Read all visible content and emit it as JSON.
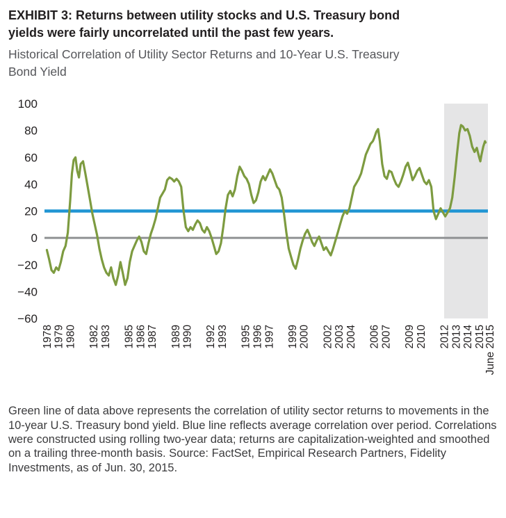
{
  "header": {
    "title": "EXHIBIT 3: Returns between utility stocks and U.S. Treasury bond yields were fairly uncorrelated until the past few years.",
    "subtitle": "Historical Correlation of Utility Sector Returns and 10-Year U.S. Treasury Bond Yield"
  },
  "caption": {
    "text": "Green line of data above represents the correlation of utility sector returns to movements in the 10-year U.S. Treasury bond yield. Blue line reflects average correlation over period. Correlations were constructed using rolling two-year data; returns are capitalization-weighted and smoothed on a trailing three-month basis. Source: FactSet, Empirical Research Partners, Fidelity Investments, as of Jun. 30, 2015."
  },
  "chart_data": {
    "type": "line",
    "title": "Historical Correlation of Utility Sector Returns and 10-Year U.S. Treasury Bond Yield",
    "xlabel": "",
    "ylabel": "",
    "grid": false,
    "legend": "none",
    "ylim": [
      -60,
      100
    ],
    "xlim": [
      1977.8,
      2015.75
    ],
    "yticks": [
      100,
      80,
      60,
      40,
      20,
      0,
      -20,
      -40,
      -60
    ],
    "ytick_labels": [
      "100",
      "80",
      "60",
      "40",
      "20",
      "0",
      "−20",
      "−40",
      "−60"
    ],
    "xticks": [
      {
        "label": "1978",
        "x": 1978
      },
      {
        "label": "1979",
        "x": 1979
      },
      {
        "label": "1980",
        "x": 1980
      },
      {
        "label": "1982",
        "x": 1982
      },
      {
        "label": "1983",
        "x": 1983
      },
      {
        "label": "1985",
        "x": 1985
      },
      {
        "label": "1986",
        "x": 1986
      },
      {
        "label": "1987",
        "x": 1987
      },
      {
        "label": "1989",
        "x": 1989
      },
      {
        "label": "1990",
        "x": 1990
      },
      {
        "label": "1992",
        "x": 1992
      },
      {
        "label": "1993",
        "x": 1993
      },
      {
        "label": "1995",
        "x": 1995
      },
      {
        "label": "1996",
        "x": 1996
      },
      {
        "label": "1997",
        "x": 1997
      },
      {
        "label": "1999",
        "x": 1999
      },
      {
        "label": "2000",
        "x": 2000
      },
      {
        "label": "2002",
        "x": 2002
      },
      {
        "label": "2003",
        "x": 2003
      },
      {
        "label": "2004",
        "x": 2004
      },
      {
        "label": "2006",
        "x": 2006
      },
      {
        "label": "2007",
        "x": 2007
      },
      {
        "label": "2009",
        "x": 2009
      },
      {
        "label": "2010",
        "x": 2010
      },
      {
        "label": "2012",
        "x": 2012
      },
      {
        "label": "2013",
        "x": 2013
      },
      {
        "label": "2014",
        "x": 2014
      },
      {
        "label": "2015",
        "x": 2015
      },
      {
        "label": "June 2015",
        "x": 2015.9
      }
    ],
    "shaded_region": {
      "from": 2012.0,
      "to": 2015.75,
      "color": "#e5e5e6"
    },
    "reference_lines": [
      {
        "name": "zero-line",
        "y": 0,
        "color": "#8f9193"
      },
      {
        "name": "average-correlation-line",
        "y": 20,
        "color": "#2095d3"
      }
    ],
    "series": [
      {
        "name": "Correlation of utility sector returns to 10-year U.S. Treasury bond yield",
        "color": "#7d9b40",
        "points": [
          [
            1978.0,
            -9
          ],
          [
            1978.2,
            -16
          ],
          [
            1978.4,
            -24
          ],
          [
            1978.6,
            -26
          ],
          [
            1978.8,
            -22
          ],
          [
            1979.0,
            -24
          ],
          [
            1979.2,
            -18
          ],
          [
            1979.4,
            -10
          ],
          [
            1979.6,
            -6
          ],
          [
            1979.8,
            4
          ],
          [
            1980.0,
            28
          ],
          [
            1980.15,
            48
          ],
          [
            1980.3,
            58
          ],
          [
            1980.45,
            60
          ],
          [
            1980.6,
            50
          ],
          [
            1980.75,
            45
          ],
          [
            1980.9,
            55
          ],
          [
            1981.1,
            57
          ],
          [
            1981.3,
            48
          ],
          [
            1981.5,
            38
          ],
          [
            1981.7,
            28
          ],
          [
            1981.9,
            18
          ],
          [
            1982.1,
            10
          ],
          [
            1982.3,
            2
          ],
          [
            1982.5,
            -8
          ],
          [
            1982.7,
            -16
          ],
          [
            1982.9,
            -22
          ],
          [
            1983.1,
            -26
          ],
          [
            1983.3,
            -28
          ],
          [
            1983.5,
            -22
          ],
          [
            1983.7,
            -30
          ],
          [
            1983.9,
            -35
          ],
          [
            1984.1,
            -28
          ],
          [
            1984.3,
            -18
          ],
          [
            1984.5,
            -26
          ],
          [
            1984.7,
            -35
          ],
          [
            1984.9,
            -30
          ],
          [
            1985.1,
            -18
          ],
          [
            1985.3,
            -10
          ],
          [
            1985.5,
            -6
          ],
          [
            1985.7,
            -2
          ],
          [
            1985.9,
            1
          ],
          [
            1986.1,
            -3
          ],
          [
            1986.3,
            -10
          ],
          [
            1986.5,
            -12
          ],
          [
            1986.7,
            -4
          ],
          [
            1986.9,
            3
          ],
          [
            1987.1,
            8
          ],
          [
            1987.3,
            14
          ],
          [
            1987.5,
            22
          ],
          [
            1987.7,
            30
          ],
          [
            1987.9,
            33
          ],
          [
            1988.1,
            36
          ],
          [
            1988.3,
            43
          ],
          [
            1988.5,
            45
          ],
          [
            1988.7,
            44
          ],
          [
            1988.9,
            42
          ],
          [
            1989.1,
            44
          ],
          [
            1989.3,
            42
          ],
          [
            1989.5,
            38
          ],
          [
            1989.7,
            20
          ],
          [
            1989.9,
            8
          ],
          [
            1990.1,
            5
          ],
          [
            1990.3,
            8
          ],
          [
            1990.5,
            6
          ],
          [
            1990.7,
            10
          ],
          [
            1990.9,
            13
          ],
          [
            1991.1,
            11
          ],
          [
            1991.3,
            6
          ],
          [
            1991.5,
            4
          ],
          [
            1991.7,
            8
          ],
          [
            1991.9,
            5
          ],
          [
            1992.1,
            0
          ],
          [
            1992.3,
            -6
          ],
          [
            1992.5,
            -12
          ],
          [
            1992.7,
            -10
          ],
          [
            1992.9,
            -4
          ],
          [
            1993.1,
            8
          ],
          [
            1993.3,
            22
          ],
          [
            1993.5,
            32
          ],
          [
            1993.7,
            35
          ],
          [
            1993.9,
            31
          ],
          [
            1994.1,
            36
          ],
          [
            1994.3,
            46
          ],
          [
            1994.5,
            53
          ],
          [
            1994.7,
            50
          ],
          [
            1994.9,
            46
          ],
          [
            1995.1,
            44
          ],
          [
            1995.3,
            40
          ],
          [
            1995.5,
            32
          ],
          [
            1995.7,
            26
          ],
          [
            1995.9,
            28
          ],
          [
            1996.1,
            34
          ],
          [
            1996.3,
            42
          ],
          [
            1996.5,
            46
          ],
          [
            1996.7,
            43
          ],
          [
            1996.9,
            47
          ],
          [
            1997.1,
            51
          ],
          [
            1997.3,
            48
          ],
          [
            1997.5,
            43
          ],
          [
            1997.7,
            38
          ],
          [
            1997.9,
            36
          ],
          [
            1998.1,
            30
          ],
          [
            1998.3,
            18
          ],
          [
            1998.5,
            4
          ],
          [
            1998.7,
            -8
          ],
          [
            1998.9,
            -14
          ],
          [
            1999.1,
            -20
          ],
          [
            1999.3,
            -23
          ],
          [
            1999.5,
            -16
          ],
          [
            1999.7,
            -8
          ],
          [
            1999.9,
            -2
          ],
          [
            2000.1,
            3
          ],
          [
            2000.3,
            6
          ],
          [
            2000.5,
            2
          ],
          [
            2000.7,
            -3
          ],
          [
            2000.9,
            -6
          ],
          [
            2001.1,
            -2
          ],
          [
            2001.3,
            1
          ],
          [
            2001.5,
            -4
          ],
          [
            2001.7,
            -9
          ],
          [
            2001.9,
            -7
          ],
          [
            2002.1,
            -10
          ],
          [
            2002.3,
            -13
          ],
          [
            2002.5,
            -8
          ],
          [
            2002.7,
            -2
          ],
          [
            2002.9,
            4
          ],
          [
            2003.1,
            10
          ],
          [
            2003.3,
            16
          ],
          [
            2003.5,
            20
          ],
          [
            2003.7,
            18
          ],
          [
            2003.9,
            22
          ],
          [
            2004.1,
            30
          ],
          [
            2004.3,
            38
          ],
          [
            2004.5,
            41
          ],
          [
            2004.7,
            44
          ],
          [
            2004.9,
            48
          ],
          [
            2005.1,
            55
          ],
          [
            2005.3,
            62
          ],
          [
            2005.5,
            66
          ],
          [
            2005.7,
            70
          ],
          [
            2005.9,
            72
          ],
          [
            2006.0,
            74
          ],
          [
            2006.2,
            79
          ],
          [
            2006.35,
            81
          ],
          [
            2006.5,
            72
          ],
          [
            2006.7,
            55
          ],
          [
            2006.9,
            46
          ],
          [
            2007.1,
            44
          ],
          [
            2007.3,
            50
          ],
          [
            2007.5,
            49
          ],
          [
            2007.7,
            44
          ],
          [
            2007.9,
            40
          ],
          [
            2008.1,
            38
          ],
          [
            2008.3,
            42
          ],
          [
            2008.5,
            47
          ],
          [
            2008.7,
            53
          ],
          [
            2008.9,
            56
          ],
          [
            2009.1,
            50
          ],
          [
            2009.3,
            43
          ],
          [
            2009.5,
            46
          ],
          [
            2009.7,
            50
          ],
          [
            2009.9,
            52
          ],
          [
            2010.1,
            47
          ],
          [
            2010.3,
            42
          ],
          [
            2010.5,
            40
          ],
          [
            2010.7,
            43
          ],
          [
            2010.9,
            38
          ],
          [
            2011.1,
            20
          ],
          [
            2011.3,
            14
          ],
          [
            2011.5,
            18
          ],
          [
            2011.7,
            22
          ],
          [
            2011.9,
            19
          ],
          [
            2012.1,
            16
          ],
          [
            2012.3,
            19
          ],
          [
            2012.5,
            22
          ],
          [
            2012.7,
            30
          ],
          [
            2012.9,
            45
          ],
          [
            2013.1,
            62
          ],
          [
            2013.3,
            78
          ],
          [
            2013.45,
            84
          ],
          [
            2013.6,
            83
          ],
          [
            2013.8,
            80
          ],
          [
            2014.0,
            81
          ],
          [
            2014.2,
            76
          ],
          [
            2014.4,
            68
          ],
          [
            2014.6,
            64
          ],
          [
            2014.8,
            67
          ],
          [
            2015.0,
            60
          ],
          [
            2015.1,
            57
          ],
          [
            2015.2,
            62
          ],
          [
            2015.35,
            68
          ],
          [
            2015.5,
            72
          ],
          [
            2015.55,
            71
          ]
        ]
      }
    ]
  }
}
